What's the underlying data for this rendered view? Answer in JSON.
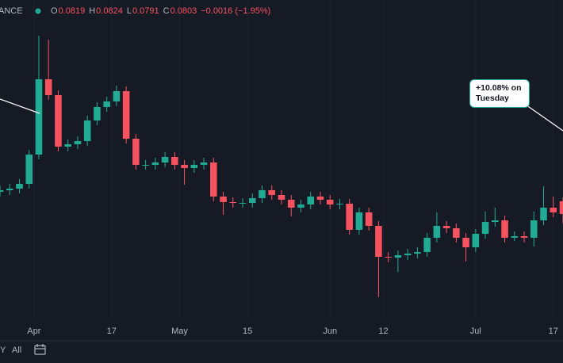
{
  "chart_data": {
    "type": "candlestick",
    "symbol": "ANCE",
    "ohlc_labels": [
      "O",
      "H",
      "L",
      "C"
    ],
    "change": "−0.0016 (−1.95%)",
    "annotation": "+10.08% on Tuesday",
    "range_buttons": [
      "Y",
      "All"
    ],
    "up_color": "#22ab94",
    "down_color": "#f7525f",
    "grid": true,
    "xlim": [
      0,
      116
    ],
    "ylim": [
      0.0673,
      0.1073
    ],
    "xticks": [
      {
        "value": 7,
        "label": "Apr"
      },
      {
        "value": 23,
        "label": "17"
      },
      {
        "value": 37,
        "label": "May"
      },
      {
        "value": 51,
        "label": "15"
      },
      {
        "value": 68,
        "label": "Jun"
      },
      {
        "value": 79,
        "label": "12"
      },
      {
        "value": 98,
        "label": "Jul"
      },
      {
        "value": 114,
        "label": "17"
      }
    ],
    "x": [
      0,
      2,
      4,
      6,
      8,
      10,
      12,
      14,
      16,
      18,
      20,
      22,
      24,
      26,
      28,
      30,
      32,
      34,
      36,
      38,
      40,
      42,
      44,
      46,
      48,
      50,
      52,
      54,
      56,
      58,
      60,
      62,
      64,
      66,
      68,
      70,
      72,
      74,
      76,
      78,
      80,
      82,
      84,
      86,
      88,
      90,
      92,
      94,
      96,
      98,
      100,
      102,
      104,
      106,
      108,
      110,
      112,
      114,
      116
    ],
    "open": [
      0.0831,
      0.0833,
      0.0835,
      0.0841,
      0.0878,
      0.0973,
      0.0953,
      0.0888,
      0.0891,
      0.0895,
      0.0921,
      0.0938,
      0.0945,
      0.0958,
      0.0898,
      0.0865,
      0.0865,
      0.0868,
      0.0875,
      0.0865,
      0.0861,
      0.0865,
      0.0868,
      0.0825,
      0.0818,
      0.0817,
      0.0817,
      0.0823,
      0.0833,
      0.0827,
      0.0821,
      0.0811,
      0.0815,
      0.0825,
      0.0821,
      0.0815,
      0.0816,
      0.0783,
      0.0805,
      0.0788,
      0.0749,
      0.0748,
      0.0751,
      0.0753,
      0.0755,
      0.0773,
      0.0788,
      0.0785,
      0.0773,
      0.0761,
      0.0778,
      0.0793,
      0.0795,
      0.0773,
      0.0775,
      0.0773,
      0.0795,
      0.0811,
      0.0819
    ],
    "high": [
      0.0839,
      0.0841,
      0.0847,
      0.0884,
      0.1028,
      0.1023,
      0.0959,
      0.0897,
      0.0901,
      0.0927,
      0.0944,
      0.0951,
      0.0965,
      0.0964,
      0.0904,
      0.0871,
      0.0874,
      0.0881,
      0.0881,
      0.0871,
      0.0871,
      0.0874,
      0.0874,
      0.0831,
      0.0824,
      0.0823,
      0.0829,
      0.0839,
      0.0839,
      0.0833,
      0.0827,
      0.0821,
      0.0831,
      0.0831,
      0.0827,
      0.0822,
      0.0822,
      0.0811,
      0.0811,
      0.0794,
      0.0755,
      0.0757,
      0.0759,
      0.0761,
      0.0779,
      0.0805,
      0.0794,
      0.0791,
      0.0779,
      0.0784,
      0.0806,
      0.0811,
      0.0801,
      0.0781,
      0.0781,
      0.0806,
      0.0838,
      0.0825,
      0.0824
    ],
    "low": [
      0.0825,
      0.0827,
      0.0829,
      0.0835,
      0.0872,
      0.0947,
      0.0882,
      0.0882,
      0.0885,
      0.0889,
      0.0915,
      0.0932,
      0.0939,
      0.0892,
      0.0859,
      0.0859,
      0.0859,
      0.0862,
      0.0859,
      0.084,
      0.0855,
      0.0859,
      0.0819,
      0.0802,
      0.0811,
      0.0811,
      0.0811,
      0.0817,
      0.0821,
      0.0815,
      0.08,
      0.0805,
      0.0809,
      0.0815,
      0.0809,
      0.0809,
      0.0777,
      0.0777,
      0.0782,
      0.0698,
      0.0742,
      0.073,
      0.0745,
      0.0747,
      0.0749,
      0.0767,
      0.0779,
      0.0767,
      0.0743,
      0.0755,
      0.0772,
      0.0787,
      0.0767,
      0.0769,
      0.0767,
      0.0762,
      0.0789,
      0.0799,
      0.0791
    ],
    "close": [
      0.0833,
      0.0835,
      0.0841,
      0.0878,
      0.0973,
      0.0953,
      0.0888,
      0.0891,
      0.0895,
      0.0921,
      0.0938,
      0.0945,
      0.0958,
      0.0898,
      0.0865,
      0.0865,
      0.0868,
      0.0875,
      0.0865,
      0.0861,
      0.0865,
      0.0868,
      0.0825,
      0.0818,
      0.0817,
      0.0817,
      0.0823,
      0.0833,
      0.0827,
      0.0821,
      0.0811,
      0.0815,
      0.0825,
      0.0821,
      0.0815,
      0.0816,
      0.0783,
      0.0805,
      0.0788,
      0.0749,
      0.0748,
      0.0751,
      0.0753,
      0.0755,
      0.0773,
      0.0788,
      0.0785,
      0.0773,
      0.0761,
      0.0778,
      0.0793,
      0.0795,
      0.0773,
      0.0775,
      0.0773,
      0.0795,
      0.0811,
      0.0805,
      0.0803
    ]
  }
}
